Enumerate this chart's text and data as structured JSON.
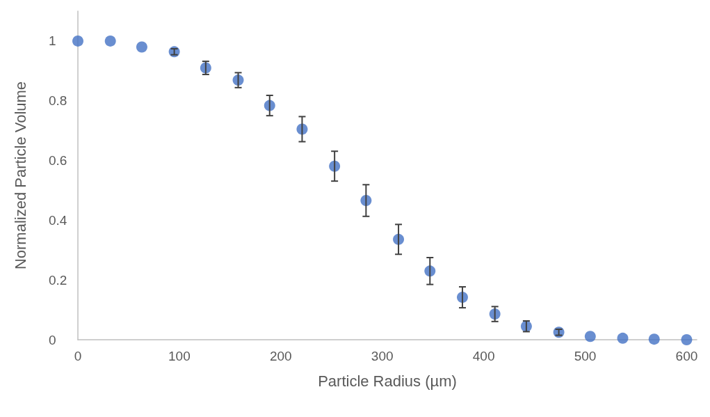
{
  "chart_data": {
    "type": "scatter",
    "xlabel": "Particle Radius (µm)",
    "ylabel": "Normalized Particle Volume",
    "x": [
      0,
      32,
      63,
      95,
      126,
      158,
      189,
      221,
      253,
      284,
      316,
      347,
      379,
      411,
      442,
      474,
      505,
      537,
      568,
      600
    ],
    "values": [
      1.0,
      1.0,
      0.98,
      0.964,
      0.91,
      0.869,
      0.784,
      0.705,
      0.581,
      0.466,
      0.336,
      0.23,
      0.142,
      0.086,
      0.045,
      0.025,
      0.011,
      0.005,
      0.002,
      0.0
    ],
    "errors": [
      null,
      null,
      null,
      0.01,
      0.022,
      0.025,
      0.034,
      0.042,
      0.05,
      0.053,
      0.05,
      0.045,
      0.035,
      0.025,
      0.018,
      0.01,
      null,
      null,
      null,
      null
    ],
    "color": "#4472c4",
    "marker": "circle",
    "grid": false,
    "xlim": [
      0,
      610
    ],
    "xticks": [
      0,
      100,
      200,
      300,
      400,
      500,
      600
    ],
    "ylim": [
      0,
      1.1
    ],
    "yticks": [
      0,
      0.2,
      0.4,
      0.6,
      0.8,
      1
    ]
  }
}
